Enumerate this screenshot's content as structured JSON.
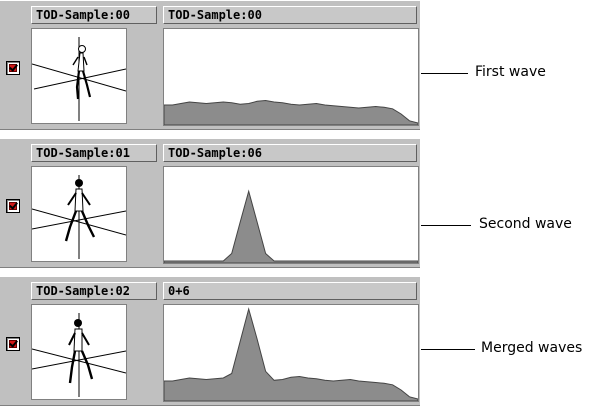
{
  "colors": {
    "panel_bg": "#c0c0c0",
    "wave_fill": "#8c8c8c",
    "checkbox_mark": "#d01818"
  },
  "rows": [
    {
      "checked": true,
      "sample_label": "TOD-Sample:00",
      "wave_label": "TOD-Sample:00",
      "annotation": "First wave",
      "wave_profile": [
        24,
        24,
        26,
        28,
        27,
        26,
        27,
        28,
        27,
        25,
        26,
        29,
        30,
        28,
        27,
        25,
        24,
        25,
        26,
        24,
        23,
        22,
        21,
        20,
        21,
        22,
        21,
        19,
        12,
        3,
        0
      ]
    },
    {
      "checked": true,
      "sample_label": "TOD-Sample:01",
      "wave_label": "TOD-Sample:06",
      "annotation": "Second wave",
      "wave_profile": [
        0,
        0,
        0,
        0,
        0,
        0,
        0,
        0,
        10,
        52,
        93,
        52,
        10,
        0,
        0,
        0,
        0,
        0,
        0,
        0,
        0,
        0,
        0,
        0,
        0,
        0,
        0,
        0,
        0,
        0,
        0
      ]
    },
    {
      "checked": true,
      "sample_label": "TOD-Sample:02",
      "wave_label": "0+6",
      "annotation": "Merged waves",
      "wave_profile": [
        24,
        24,
        26,
        28,
        27,
        26,
        27,
        28,
        34,
        77,
        120,
        80,
        37,
        25,
        26,
        29,
        30,
        28,
        27,
        25,
        24,
        25,
        26,
        24,
        23,
        22,
        21,
        19,
        12,
        3,
        0
      ]
    }
  ]
}
